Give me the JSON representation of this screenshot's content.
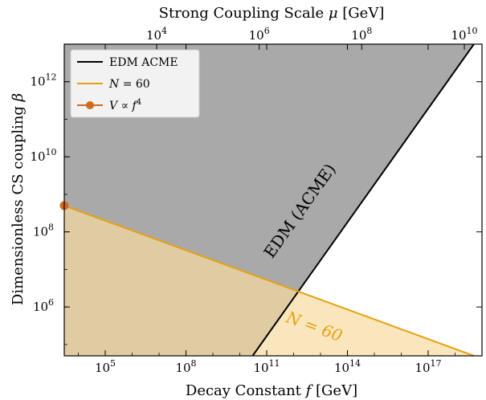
{
  "chart_data": {
    "type": "area",
    "x_axis": {
      "label_prefix": "Decay Constant ",
      "label_var": "f",
      "label_suffix": " [GeV]",
      "scale": "log",
      "range": [
        3000.0,
        1e+19
      ],
      "ticks": [
        {
          "base": "10",
          "exp": "5",
          "value": 100000.0
        },
        {
          "base": "10",
          "exp": "8",
          "value": 100000000.0
        },
        {
          "base": "10",
          "exp": "11",
          "value": 100000000000.0
        },
        {
          "base": "10",
          "exp": "14",
          "value": 100000000000000.0
        },
        {
          "base": "10",
          "exp": "17",
          "value": 1e+17
        }
      ]
    },
    "y_axis": {
      "label_prefix": "Dimensionless CS coupling ",
      "label_var": "β",
      "scale": "log",
      "range": [
        50000.0,
        10000000000000.0
      ],
      "ticks": [
        {
          "base": "10",
          "exp": "6",
          "value": 1000000.0
        },
        {
          "base": "10",
          "exp": "8",
          "value": 100000000.0
        },
        {
          "base": "10",
          "exp": "10",
          "value": 10000000000.0
        },
        {
          "base": "10",
          "exp": "12",
          "value": 1000000000000.0
        }
      ]
    },
    "top_axis": {
      "label_prefix": "Strong Coupling Scale ",
      "label_var": "μ",
      "label_suffix": " [GeV]",
      "scale": "log",
      "ticks": [
        {
          "base": "10",
          "exp": "4",
          "value": 10000.0
        },
        {
          "base": "10",
          "exp": "6",
          "value": 1000000.0
        },
        {
          "base": "10",
          "exp": "8",
          "value": 100000000.0
        },
        {
          "base": "10",
          "exp": "10",
          "value": 10000000000.0
        }
      ]
    },
    "data_xmin": 3000.0,
    "series": [
      {
        "name": "EDM ACME",
        "color": "#000000",
        "fill": "#a9a9a9",
        "region": "excluded (shaded above/left of line)",
        "points": [
          {
            "x": 30000000000.0,
            "y": 50000.0
          },
          {
            "x": 5e+18,
            "y": 10000000000000.0
          }
        ]
      },
      {
        "name": "N = 60",
        "color": "#e8a010",
        "fill": "#f8dba0",
        "region": "shaded below line",
        "points": [
          {
            "x": 3000.0,
            "y": 500000000.0
          },
          {
            "x": 5e+18,
            "y": 50000.0
          }
        ]
      },
      {
        "name": "V ∝ f^4",
        "color": "#d2691e",
        "points": [
          {
            "x": 3000.0,
            "y": 500000000.0
          }
        ]
      }
    ],
    "annotations": [
      {
        "text": "EDM (ACME)",
        "x": 2500000000000.0,
        "y": 300000000.0,
        "color": "#000000"
      },
      {
        "text": "N = 60",
        "x": 5000000000000.0,
        "y": 220000.0,
        "color": "#e8a010"
      }
    ],
    "legend": {
      "placement": "top-left",
      "entries": [
        {
          "label": "EDM ACME"
        },
        {
          "label_var": "N",
          "label_rest": " = 60"
        },
        {
          "label_var": "V",
          "label_mid": " ∝ ",
          "label_var2": "f",
          "label_exp": "4"
        }
      ]
    },
    "grid": false
  }
}
